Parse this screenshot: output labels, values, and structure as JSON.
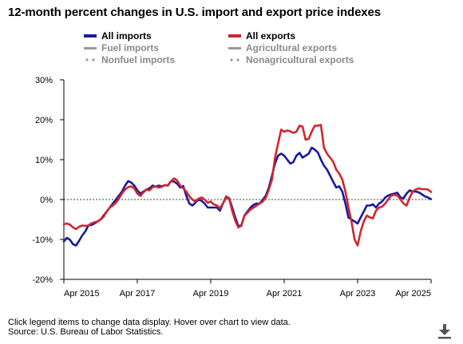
{
  "title": "12-month percent changes in U.S. import and export price indexes",
  "legend": [
    {
      "label": "All imports",
      "color": "#1a1a9c",
      "style": "solid",
      "active": true
    },
    {
      "label": "All exports",
      "color": "#d0262e",
      "style": "solid",
      "active": true
    },
    {
      "label": "Fuel imports",
      "color": "#999999",
      "style": "solid",
      "active": false
    },
    {
      "label": "Agricultural exports",
      "color": "#999999",
      "style": "solid",
      "active": false
    },
    {
      "label": "Nonfuel imports",
      "color": "#999999",
      "style": "dotted",
      "active": false
    },
    {
      "label": "Nonagricultural exports",
      "color": "#999999",
      "style": "dotted",
      "active": false
    }
  ],
  "footer": {
    "line1": "Click legend items to change data display. Hover over chart to view data.",
    "line2": "Source: U.S. Bureau of Labor Statistics."
  },
  "download_icon": "download-arrow-icon",
  "chart_data": {
    "type": "line",
    "title": "12-month percent changes in U.S. import and export price indexes",
    "xlabel": "",
    "ylabel": "",
    "xlim": [
      "2015-04",
      "2025-04"
    ],
    "ylim": [
      -20,
      30
    ],
    "yticks": [
      -20,
      -10,
      0,
      10,
      20,
      30
    ],
    "ytick_labels": [
      "-20%",
      "-10%",
      "0%",
      "10%",
      "20%",
      "30%"
    ],
    "xticks": [
      "2015-04",
      "2017-04",
      "2019-04",
      "2021-04",
      "2023-04",
      "2025-04"
    ],
    "xtick_labels": [
      "Apr 2015",
      "Apr 2017",
      "Apr 2019",
      "Apr 2021",
      "Apr 2023",
      "Apr 2025"
    ],
    "zero_line": "dashed",
    "grid": false,
    "series": [
      {
        "name": "All imports",
        "color": "#1a1a9c",
        "points": [
          [
            "2015-04",
            -10.5
          ],
          [
            "2015-05",
            -9.6
          ],
          [
            "2015-06",
            -10.1
          ],
          [
            "2015-07",
            -11.2
          ],
          [
            "2015-08",
            -11.5
          ],
          [
            "2015-09",
            -10.3
          ],
          [
            "2015-10",
            -9.0
          ],
          [
            "2015-11",
            -8.0
          ],
          [
            "2015-12",
            -6.5
          ],
          [
            "2016-01",
            -6.4
          ],
          [
            "2016-02",
            -6.0
          ],
          [
            "2016-03",
            -5.5
          ],
          [
            "2016-04",
            -5.0
          ],
          [
            "2016-05",
            -4.0
          ],
          [
            "2016-06",
            -3.0
          ],
          [
            "2016-07",
            -2.0
          ],
          [
            "2016-08",
            -1.0
          ],
          [
            "2016-09",
            0.0
          ],
          [
            "2016-10",
            1.0
          ],
          [
            "2016-11",
            2.0
          ],
          [
            "2016-12",
            3.5
          ],
          [
            "2017-01",
            4.6
          ],
          [
            "2017-02",
            4.3
          ],
          [
            "2017-03",
            3.5
          ],
          [
            "2017-04",
            2.3
          ],
          [
            "2017-05",
            1.5
          ],
          [
            "2017-06",
            2.0
          ],
          [
            "2017-07",
            2.5
          ],
          [
            "2017-08",
            2.8
          ],
          [
            "2017-09",
            3.5
          ],
          [
            "2017-10",
            3.2
          ],
          [
            "2017-11",
            3.5
          ],
          [
            "2017-12",
            3.3
          ],
          [
            "2018-01",
            3.6
          ],
          [
            "2018-02",
            3.5
          ],
          [
            "2018-03",
            4.6
          ],
          [
            "2018-04",
            4.5
          ],
          [
            "2018-05",
            4.0
          ],
          [
            "2018-06",
            3.0
          ],
          [
            "2018-07",
            3.4
          ],
          [
            "2018-08",
            1.0
          ],
          [
            "2018-09",
            -1.0
          ],
          [
            "2018-10",
            -1.5
          ],
          [
            "2018-11",
            -0.8
          ],
          [
            "2018-12",
            0.0
          ],
          [
            "2019-01",
            -0.3
          ],
          [
            "2019-02",
            -1.0
          ],
          [
            "2019-03",
            -2.0
          ],
          [
            "2019-04",
            -2.0
          ],
          [
            "2019-05",
            -2.0
          ],
          [
            "2019-06",
            -2.0
          ],
          [
            "2019-07",
            -2.8
          ],
          [
            "2019-08",
            -1.0
          ],
          [
            "2019-09",
            0.5
          ],
          [
            "2019-10",
            0.4
          ],
          [
            "2019-11",
            -2.0
          ],
          [
            "2019-12",
            -4.5
          ],
          [
            "2020-01",
            -6.6
          ],
          [
            "2020-02",
            -6.5
          ],
          [
            "2020-03",
            -4.0
          ],
          [
            "2020-04",
            -3.0
          ],
          [
            "2020-05",
            -2.0
          ],
          [
            "2020-06",
            -1.3
          ],
          [
            "2020-07",
            -1.0
          ],
          [
            "2020-08",
            -1.0
          ],
          [
            "2020-09",
            0.0
          ],
          [
            "2020-10",
            1.0
          ],
          [
            "2020-11",
            3.0
          ],
          [
            "2020-12",
            6.0
          ],
          [
            "2021-01",
            9.0
          ],
          [
            "2021-02",
            11.0
          ],
          [
            "2021-03",
            11.5
          ],
          [
            "2021-04",
            11.0
          ],
          [
            "2021-05",
            10.0
          ],
          [
            "2021-06",
            9.0
          ],
          [
            "2021-07",
            9.4
          ],
          [
            "2021-08",
            11.0
          ],
          [
            "2021-09",
            11.7
          ],
          [
            "2021-10",
            10.5
          ],
          [
            "2021-11",
            11.0
          ],
          [
            "2021-12",
            11.5
          ],
          [
            "2022-01",
            13.0
          ],
          [
            "2022-02",
            12.5
          ],
          [
            "2022-03",
            11.8
          ],
          [
            "2022-04",
            10.0
          ],
          [
            "2022-05",
            8.5
          ],
          [
            "2022-06",
            7.5
          ],
          [
            "2022-07",
            6.0
          ],
          [
            "2022-08",
            4.5
          ],
          [
            "2022-09",
            3.0
          ],
          [
            "2022-10",
            3.3
          ],
          [
            "2022-11",
            2.0
          ],
          [
            "2022-12",
            -1.0
          ],
          [
            "2023-01",
            -4.5
          ],
          [
            "2023-02",
            -5.0
          ],
          [
            "2023-03",
            -5.5
          ],
          [
            "2023-04",
            -6.0
          ],
          [
            "2023-05",
            -4.5
          ],
          [
            "2023-06",
            -3.0
          ],
          [
            "2023-07",
            -1.5
          ],
          [
            "2023-08",
            -1.5
          ],
          [
            "2023-09",
            -1.2
          ],
          [
            "2023-10",
            -2.0
          ],
          [
            "2023-11",
            -1.0
          ],
          [
            "2023-12",
            -0.5
          ],
          [
            "2024-01",
            0.5
          ],
          [
            "2024-02",
            1.0
          ],
          [
            "2024-03",
            1.3
          ],
          [
            "2024-04",
            1.5
          ],
          [
            "2024-05",
            1.7
          ],
          [
            "2024-06",
            0.5
          ],
          [
            "2024-07",
            0.3
          ],
          [
            "2024-08",
            1.5
          ],
          [
            "2024-09",
            2.3
          ],
          [
            "2024-10",
            2.0
          ],
          [
            "2024-11",
            2.0
          ],
          [
            "2024-12",
            1.8
          ],
          [
            "2025-01",
            1.3
          ],
          [
            "2025-02",
            0.8
          ],
          [
            "2025-03",
            0.5
          ],
          [
            "2025-04",
            0.1
          ]
        ]
      },
      {
        "name": "All exports",
        "color": "#d0262e",
        "points": [
          [
            "2015-04",
            -6.2
          ],
          [
            "2015-05",
            -6.0
          ],
          [
            "2015-06",
            -6.3
          ],
          [
            "2015-07",
            -7.0
          ],
          [
            "2015-08",
            -7.4
          ],
          [
            "2015-09",
            -6.8
          ],
          [
            "2015-10",
            -6.5
          ],
          [
            "2015-11",
            -6.6
          ],
          [
            "2015-12",
            -6.5
          ],
          [
            "2016-01",
            -6.0
          ],
          [
            "2016-02",
            -5.7
          ],
          [
            "2016-03",
            -5.5
          ],
          [
            "2016-04",
            -5.0
          ],
          [
            "2016-05",
            -4.3
          ],
          [
            "2016-06",
            -3.0
          ],
          [
            "2016-07",
            -2.0
          ],
          [
            "2016-08",
            -1.5
          ],
          [
            "2016-09",
            -0.8
          ],
          [
            "2016-10",
            0.3
          ],
          [
            "2016-11",
            1.5
          ],
          [
            "2016-12",
            2.5
          ],
          [
            "2017-01",
            3.1
          ],
          [
            "2017-02",
            3.3
          ],
          [
            "2017-03",
            2.8
          ],
          [
            "2017-04",
            1.5
          ],
          [
            "2017-05",
            0.9
          ],
          [
            "2017-06",
            1.8
          ],
          [
            "2017-07",
            2.5
          ],
          [
            "2017-08",
            2.3
          ],
          [
            "2017-09",
            3.1
          ],
          [
            "2017-10",
            3.3
          ],
          [
            "2017-11",
            3.0
          ],
          [
            "2017-12",
            3.2
          ],
          [
            "2018-01",
            3.6
          ],
          [
            "2018-02",
            3.6
          ],
          [
            "2018-03",
            4.6
          ],
          [
            "2018-04",
            5.3
          ],
          [
            "2018-05",
            4.8
          ],
          [
            "2018-06",
            3.5
          ],
          [
            "2018-07",
            2.8
          ],
          [
            "2018-08",
            2.0
          ],
          [
            "2018-09",
            0.8
          ],
          [
            "2018-10",
            0.0
          ],
          [
            "2018-11",
            -0.5
          ],
          [
            "2018-12",
            0.2
          ],
          [
            "2019-01",
            0.5
          ],
          [
            "2019-02",
            0.0
          ],
          [
            "2019-03",
            -0.8
          ],
          [
            "2019-04",
            -0.5
          ],
          [
            "2019-05",
            -1.2
          ],
          [
            "2019-06",
            -1.5
          ],
          [
            "2019-07",
            -2.2
          ],
          [
            "2019-08",
            -1.0
          ],
          [
            "2019-09",
            0.8
          ],
          [
            "2019-10",
            0.3
          ],
          [
            "2019-11",
            -2.8
          ],
          [
            "2019-12",
            -5.3
          ],
          [
            "2020-01",
            -7.0
          ],
          [
            "2020-02",
            -6.6
          ],
          [
            "2020-03",
            -4.0
          ],
          [
            "2020-04",
            -3.3
          ],
          [
            "2020-05",
            -2.5
          ],
          [
            "2020-06",
            -2.0
          ],
          [
            "2020-07",
            -1.5
          ],
          [
            "2020-08",
            -1.0
          ],
          [
            "2020-09",
            -0.5
          ],
          [
            "2020-10",
            0.5
          ],
          [
            "2020-11",
            2.5
          ],
          [
            "2020-12",
            5.0
          ],
          [
            "2021-01",
            10.5
          ],
          [
            "2021-02",
            14.0
          ],
          [
            "2021-03",
            17.5
          ],
          [
            "2021-04",
            17.0
          ],
          [
            "2021-05",
            17.3
          ],
          [
            "2021-06",
            17.1
          ],
          [
            "2021-07",
            16.7
          ],
          [
            "2021-08",
            17.0
          ],
          [
            "2021-09",
            18.5
          ],
          [
            "2021-10",
            18.3
          ],
          [
            "2021-11",
            15.0
          ],
          [
            "2021-12",
            15.2
          ],
          [
            "2022-01",
            17.0
          ],
          [
            "2022-02",
            18.5
          ],
          [
            "2022-03",
            18.5
          ],
          [
            "2022-04",
            18.7
          ],
          [
            "2022-05",
            13.0
          ],
          [
            "2022-06",
            11.5
          ],
          [
            "2022-07",
            10.5
          ],
          [
            "2022-08",
            9.5
          ],
          [
            "2022-09",
            7.5
          ],
          [
            "2022-10",
            6.5
          ],
          [
            "2022-11",
            5.0
          ],
          [
            "2022-12",
            2.0
          ],
          [
            "2023-01",
            -2.0
          ],
          [
            "2023-02",
            -5.5
          ],
          [
            "2023-03",
            -10.0
          ],
          [
            "2023-04",
            -11.5
          ],
          [
            "2023-05",
            -8.0
          ],
          [
            "2023-06",
            -5.5
          ],
          [
            "2023-07",
            -4.0
          ],
          [
            "2023-08",
            -4.5
          ],
          [
            "2023-09",
            -4.7
          ],
          [
            "2023-10",
            -2.8
          ],
          [
            "2023-11",
            -2.0
          ],
          [
            "2023-12",
            -1.8
          ],
          [
            "2024-01",
            -1.0
          ],
          [
            "2024-02",
            0.0
          ],
          [
            "2024-03",
            1.0
          ],
          [
            "2024-04",
            1.2
          ],
          [
            "2024-05",
            1.0
          ],
          [
            "2024-06",
            0.0
          ],
          [
            "2024-07",
            -1.0
          ],
          [
            "2024-08",
            -1.5
          ],
          [
            "2024-09",
            0.5
          ],
          [
            "2024-10",
            2.0
          ],
          [
            "2024-11",
            2.5
          ],
          [
            "2024-12",
            2.8
          ],
          [
            "2025-01",
            2.6
          ],
          [
            "2025-02",
            2.6
          ],
          [
            "2025-03",
            2.5
          ],
          [
            "2025-04",
            1.9
          ]
        ]
      }
    ]
  }
}
